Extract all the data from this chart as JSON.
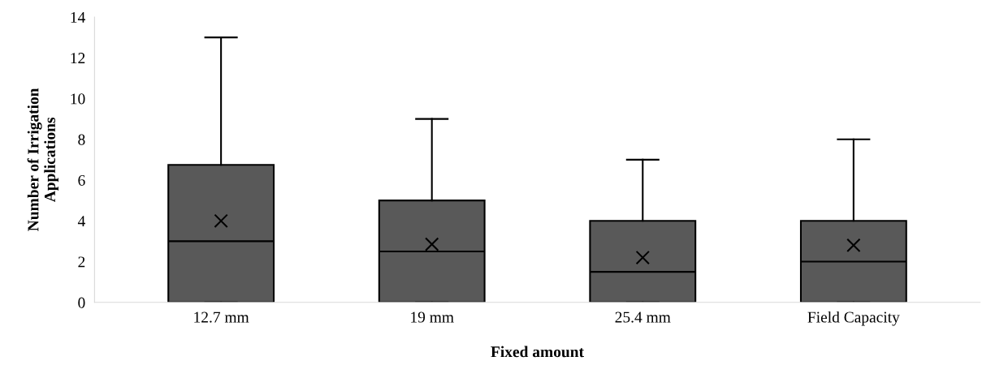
{
  "chart_data": {
    "type": "box",
    "xlabel": "Fixed amount",
    "ylabel": "Number of Irrigation\nApplications",
    "categories": [
      "12.7 mm",
      "19 mm",
      "25.4 mm",
      "Field Capacity"
    ],
    "boxes": [
      {
        "low": 0,
        "q1": 0,
        "median": 3,
        "q3": 6.75,
        "high": 13,
        "mean": 4
      },
      {
        "low": 0,
        "q1": 0,
        "median": 2.5,
        "q3": 5,
        "high": 9,
        "mean": 2.85
      },
      {
        "low": 0,
        "q1": 0,
        "median": 1.5,
        "q3": 4,
        "high": 7,
        "mean": 2.2
      },
      {
        "low": 0,
        "q1": 0,
        "median": 2,
        "q3": 4,
        "high": 8,
        "mean": 2.8
      }
    ],
    "color": "#595959",
    "ylim": [
      0,
      14
    ],
    "yticks": [
      0,
      2,
      4,
      6,
      8,
      10,
      12,
      14
    ],
    "grid": false,
    "marker": "cross"
  }
}
